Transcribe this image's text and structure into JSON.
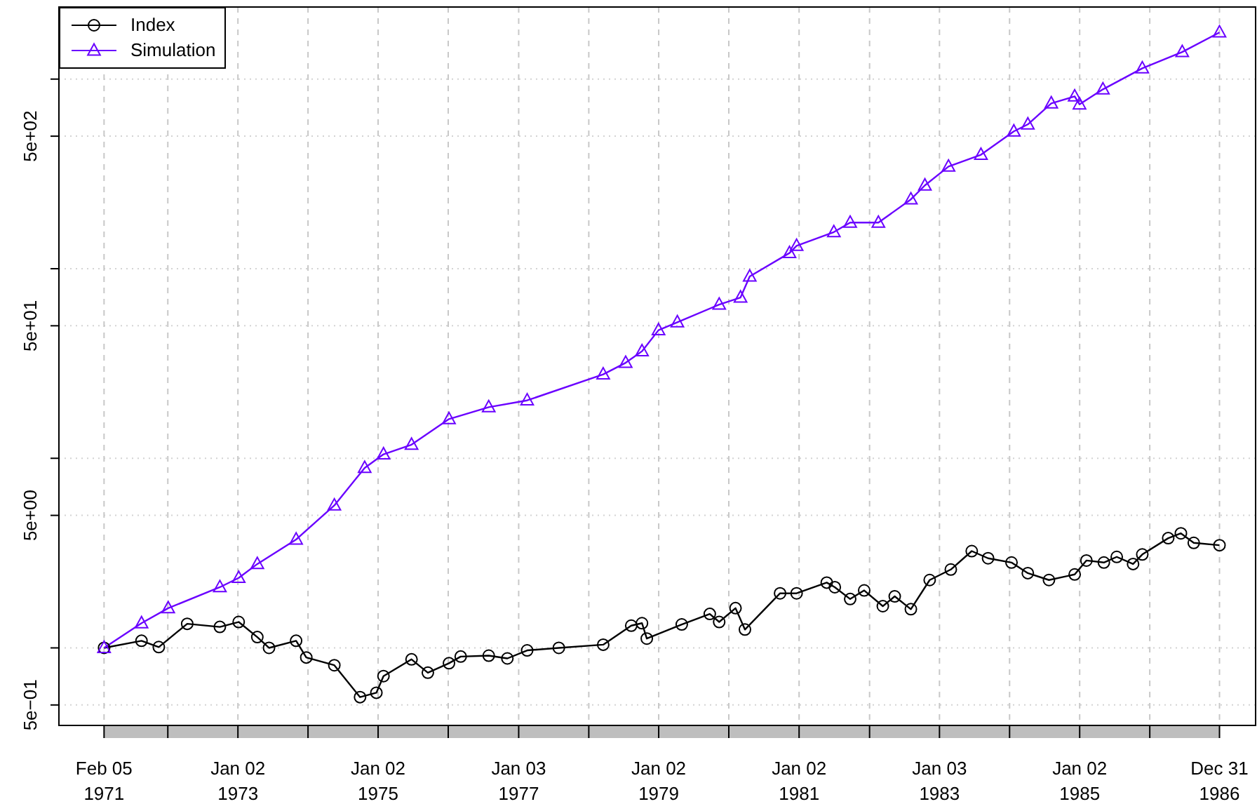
{
  "chart_data": {
    "type": "line",
    "log": "y",
    "grid": true,
    "legend": "top left",
    "xlim": [
      "1970-06-15",
      "1987-07-07"
    ],
    "xticks": [
      {
        "value": "1971-02-05",
        "label": "Feb 05\n1971"
      },
      {
        "value": "1972-01-03",
        "label": null
      },
      {
        "value": "1973-01-02",
        "label": "Jan 02\n1973"
      },
      {
        "value": "1974-01-02",
        "label": null
      },
      {
        "value": "1975-01-02",
        "label": "Jan 02\n1975"
      },
      {
        "value": "1976-01-02",
        "label": null
      },
      {
        "value": "1977-01-03",
        "label": "Jan 03\n1977"
      },
      {
        "value": "1978-01-03",
        "label": null
      },
      {
        "value": "1979-01-02",
        "label": "Jan 02\n1979"
      },
      {
        "value": "1980-01-02",
        "label": null
      },
      {
        "value": "1981-01-02",
        "label": "Jan 02\n1981"
      },
      {
        "value": "1982-01-04",
        "label": null
      },
      {
        "value": "1983-01-03",
        "label": "Jan 03\n1983"
      },
      {
        "value": "1984-01-03",
        "label": null
      },
      {
        "value": "1985-01-02",
        "label": "Jan 02\n1985"
      },
      {
        "value": "1986-01-02",
        "label": null
      },
      {
        "value": "1986-12-31",
        "label": "Dec 31\n1986"
      }
    ],
    "ylim": [
      0.39,
      2400
    ],
    "yticks": [
      {
        "value": 0.5,
        "label": "5e−01"
      },
      {
        "value": 1,
        "label": null
      },
      {
        "value": 5,
        "label": "5e+00"
      },
      {
        "value": 10,
        "label": null
      },
      {
        "value": 50,
        "label": "5e+01"
      },
      {
        "value": 100,
        "label": null
      },
      {
        "value": 500,
        "label": "5e+02"
      },
      {
        "value": 1000,
        "label": null
      }
    ],
    "series": [
      {
        "name": "Index",
        "type": "line",
        "marker": "circle",
        "color": "#000000",
        "x": [
          "1971-02-05",
          "1971-08-19",
          "1971-11-17",
          "1972-04-13",
          "1972-09-30",
          "1973-01-06",
          "1973-04-13",
          "1973-06-13",
          "1973-11-01",
          "1973-12-24",
          "1974-05-19",
          "1974-09-30",
          "1974-12-24",
          "1975-01-30",
          "1975-06-25",
          "1975-09-18",
          "1976-01-06",
          "1976-03-07",
          "1976-07-31",
          "1976-11-05",
          "1977-02-16",
          "1977-07-31",
          "1978-03-19",
          "1978-08-12",
          "1978-10-07",
          "1978-11-01",
          "1979-05-02",
          "1979-09-25",
          "1979-11-13",
          "1980-02-06",
          "1980-03-26",
          "1980-09-25",
          "1980-12-20",
          "1981-05-26",
          "1981-07-07",
          "1981-09-25",
          "1981-12-07",
          "1982-03-14",
          "1982-05-15",
          "1982-08-07",
          "1982-11-13",
          "1983-03-03",
          "1983-06-20",
          "1983-09-13",
          "1984-01-13",
          "1984-04-07",
          "1984-07-26",
          "1984-12-07",
          "1985-02-06",
          "1985-05-08",
          "1985-07-14",
          "1985-10-07",
          "1985-11-24",
          "1986-04-08",
          "1986-06-13",
          "1986-08-19",
          "1986-12-31"
        ],
        "values": [
          1.0,
          1.09,
          1.01,
          1.34,
          1.29,
          1.37,
          1.14,
          1.0,
          1.09,
          0.89,
          0.81,
          0.55,
          0.58,
          0.71,
          0.87,
          0.74,
          0.83,
          0.9,
          0.91,
          0.88,
          0.97,
          1.0,
          1.04,
          1.31,
          1.35,
          1.12,
          1.33,
          1.51,
          1.37,
          1.62,
          1.25,
          1.94,
          1.94,
          2.21,
          2.09,
          1.81,
          2.01,
          1.66,
          1.87,
          1.6,
          2.28,
          2.59,
          3.24,
          2.97,
          2.82,
          2.48,
          2.28,
          2.44,
          2.89,
          2.82,
          3.02,
          2.77,
          3.11,
          3.79,
          4.02,
          3.58,
          3.48
        ]
      },
      {
        "name": "Simulation",
        "type": "line",
        "marker": "triangle",
        "color": "#6a00ff",
        "x": [
          "1971-02-05",
          "1971-08-19",
          "1972-01-05",
          "1972-09-30",
          "1973-01-06",
          "1973-04-13",
          "1973-11-01",
          "1974-05-19",
          "1974-10-24",
          "1975-01-30",
          "1975-06-25",
          "1976-01-06",
          "1976-07-31",
          "1977-02-16",
          "1978-03-19",
          "1978-07-14",
          "1978-10-07",
          "1979-01-01",
          "1979-04-09",
          "1979-11-13",
          "1980-03-03",
          "1980-04-20",
          "1980-11-13",
          "1980-12-20",
          "1981-07-02",
          "1981-09-25",
          "1982-02-19",
          "1982-08-07",
          "1982-10-19",
          "1983-02-19",
          "1983-08-07",
          "1984-01-25",
          "1984-04-07",
          "1984-08-07",
          "1984-12-07",
          "1985-01-01",
          "1985-05-03",
          "1985-11-24",
          "1986-06-20",
          "1986-12-31"
        ],
        "values": [
          1.0,
          1.35,
          1.62,
          2.09,
          2.34,
          2.77,
          3.73,
          5.64,
          8.9,
          10.5,
          11.8,
          16.1,
          18.6,
          20.2,
          27.7,
          31.9,
          36.7,
          47.4,
          52.2,
          64.7,
          70.5,
          91,
          121,
          132,
          156,
          175,
          175,
          232,
          275,
          346,
          399,
          530,
          577,
          745,
          811,
          736,
          883,
          1140,
          1390,
          1763
        ]
      }
    ]
  }
}
